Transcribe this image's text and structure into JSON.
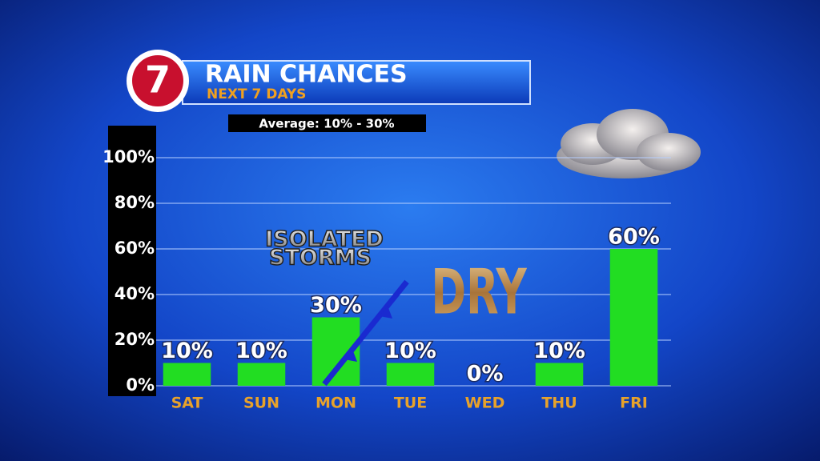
{
  "chart_data": {
    "type": "bar",
    "title": "RAIN CHANCES",
    "subtitle": "NEXT 7 DAYS",
    "logo": "7",
    "annotations": [
      "Average: 10% - 30%",
      "ISOLATED",
      "STORMS",
      "DRY"
    ],
    "categories": [
      "SAT",
      "SUN",
      "MON",
      "TUE",
      "WED",
      "THU",
      "FRI"
    ],
    "values": [
      10,
      10,
      30,
      10,
      0,
      10,
      60
    ],
    "value_labels": [
      "10%",
      "10%",
      "30%",
      "10%",
      "0%",
      "10%",
      "60%"
    ],
    "color": "#22dd22",
    "ylim": [
      0,
      100
    ],
    "yticks": [
      {
        "value": 0,
        "label": "0%"
      },
      {
        "value": 20,
        "label": "20%"
      },
      {
        "value": 40,
        "label": "40%"
      },
      {
        "value": 60,
        "label": "60%"
      },
      {
        "value": 80,
        "label": "80%"
      },
      {
        "value": 100,
        "label": "100%"
      }
    ],
    "grid": true
  }
}
